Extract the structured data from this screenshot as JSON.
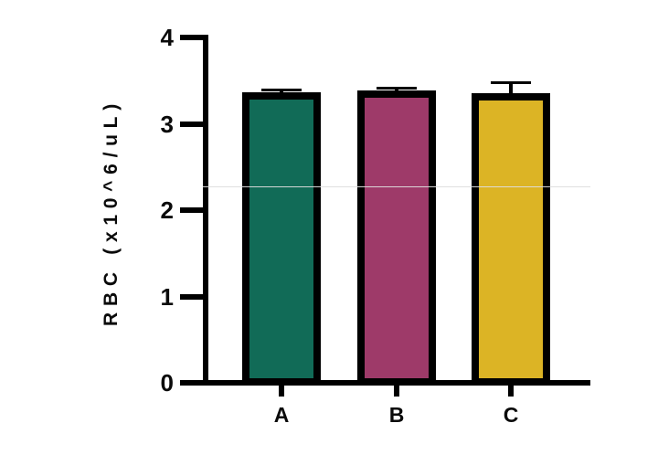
{
  "chart_data": {
    "type": "bar",
    "ylabel": "RBC (x10^6/uL)",
    "categories": [
      "A",
      "B",
      "C"
    ],
    "values": [
      3.37,
      3.39,
      3.35
    ],
    "errors": [
      0.04,
      0.04,
      0.14
    ],
    "bar_colors": [
      "#116B57",
      "#9E3A69",
      "#DCB425"
    ],
    "ylim": [
      0,
      4
    ],
    "yticks": [
      0,
      1,
      2,
      3,
      4
    ],
    "grid": false,
    "legend": false,
    "axis_color": "#000000",
    "background_color": "#FFFFFF",
    "error_bar_style": "caps-up-only"
  }
}
